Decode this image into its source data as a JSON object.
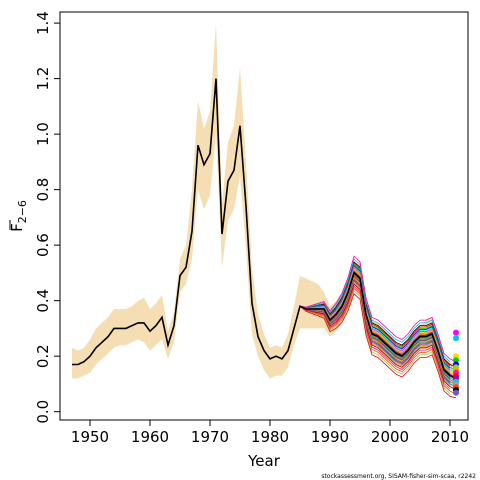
{
  "chart_data": {
    "type": "line",
    "title": "",
    "xlabel": "Year",
    "ylabel_main": "F",
    "ylabel_sub": "2−6",
    "xlim": [
      1945,
      2013
    ],
    "ylim": [
      -0.03,
      1.44
    ],
    "x_ticks": [
      1950,
      1960,
      1970,
      1980,
      1990,
      2000,
      2010
    ],
    "y_ticks": [
      0.0,
      0.2,
      0.4,
      0.6,
      0.8,
      1.0,
      1.2,
      1.4
    ],
    "y_tick_labels": [
      "0.0",
      "0.2",
      "0.4",
      "0.6",
      "0.8",
      "1.0",
      "1.2",
      "1.4"
    ],
    "credit": "stockassessment.org, SISAM-fisher-sim-scaa, r2242",
    "grid": false,
    "legend": "none",
    "band_color": "#f5deb3",
    "line_color": "#000000",
    "years": [
      1947,
      1948,
      1949,
      1950,
      1951,
      1952,
      1953,
      1954,
      1955,
      1956,
      1957,
      1958,
      1959,
      1960,
      1961,
      1962,
      1963,
      1964,
      1965,
      1966,
      1967,
      1968,
      1969,
      1970,
      1971,
      1972,
      1973,
      1974,
      1975,
      1976,
      1977,
      1978,
      1979,
      1980,
      1981,
      1982,
      1983,
      1984,
      1985,
      1986,
      1987,
      1988,
      1989,
      1990,
      1991,
      1992,
      1993,
      1994,
      1995,
      1996,
      1997,
      1998,
      1999,
      2000,
      2001,
      2002,
      2003,
      2004,
      2005,
      2006,
      2007,
      2008,
      2009,
      2010,
      2011
    ],
    "estimate": [
      0.17,
      0.17,
      0.18,
      0.2,
      0.23,
      0.25,
      0.27,
      0.3,
      0.3,
      0.3,
      0.31,
      0.32,
      0.32,
      0.29,
      0.31,
      0.34,
      0.24,
      0.31,
      0.49,
      0.52,
      0.65,
      0.96,
      0.89,
      0.93,
      1.2,
      0.64,
      0.83,
      0.87,
      1.03,
      0.74,
      0.39,
      0.27,
      0.22,
      0.19,
      0.2,
      0.19,
      0.22,
      0.3,
      0.38,
      0.37,
      0.37,
      0.37,
      0.37,
      0.33,
      0.35,
      0.38,
      0.43,
      0.5,
      0.48,
      0.35,
      0.28,
      0.27,
      0.25,
      0.23,
      0.21,
      0.2,
      0.22,
      0.25,
      0.27,
      0.27,
      0.28,
      0.22,
      0.15,
      0.13,
      0.12
    ],
    "upper": [
      0.23,
      0.22,
      0.23,
      0.26,
      0.3,
      0.32,
      0.34,
      0.37,
      0.37,
      0.37,
      0.38,
      0.4,
      0.41,
      0.37,
      0.39,
      0.42,
      0.29,
      0.36,
      0.55,
      0.6,
      0.8,
      1.12,
      1.02,
      1.08,
      1.4,
      0.75,
      0.97,
      1.03,
      1.24,
      0.9,
      0.52,
      0.35,
      0.28,
      0.23,
      0.24,
      0.23,
      0.28,
      0.38,
      0.49,
      0.48,
      0.47,
      0.46,
      0.43,
      0.38,
      0.4,
      0.43,
      0.48,
      0.54,
      0.53,
      0.39,
      0.33,
      0.32,
      0.3,
      0.28,
      0.25,
      0.24,
      0.26,
      0.29,
      0.31,
      0.33,
      0.34,
      0.28,
      0.2,
      0.18,
      0.17
    ],
    "lower": [
      0.12,
      0.12,
      0.13,
      0.14,
      0.17,
      0.19,
      0.21,
      0.23,
      0.24,
      0.24,
      0.25,
      0.26,
      0.25,
      0.22,
      0.24,
      0.26,
      0.19,
      0.25,
      0.43,
      0.46,
      0.55,
      0.8,
      0.73,
      0.78,
      1.0,
      0.52,
      0.69,
      0.73,
      0.85,
      0.58,
      0.28,
      0.2,
      0.15,
      0.12,
      0.13,
      0.13,
      0.16,
      0.24,
      0.3,
      0.3,
      0.3,
      0.3,
      0.3,
      0.27,
      0.29,
      0.32,
      0.37,
      0.44,
      0.42,
      0.3,
      0.23,
      0.22,
      0.2,
      0.18,
      0.16,
      0.15,
      0.17,
      0.2,
      0.22,
      0.22,
      0.22,
      0.17,
      0.11,
      0.09,
      0.08
    ],
    "retro_start_year": 1985,
    "retro_offsets": [
      0.04,
      0.035,
      0.03,
      0.026,
      0.022,
      0.018,
      0.015,
      0.012,
      0.009,
      0.006,
      0.004,
      0.002,
      0.0,
      -0.002,
      -0.004,
      -0.006,
      -0.009,
      -0.012,
      -0.015,
      -0.018,
      -0.022,
      -0.026,
      -0.03,
      -0.035,
      -0.04,
      -0.048,
      -0.056,
      -0.065,
      -0.075,
      0.05,
      0.06
    ],
    "retro_colors": [
      "#000000",
      "#ff0000",
      "#00cd00",
      "#0000ff",
      "#00ffff",
      "#ff00ff",
      "#ffd700",
      "#a0a0a0",
      "#ff8c00",
      "#8b4513",
      "#9400d3",
      "#228b22",
      "#dc143c",
      "#1e90ff",
      "#ff69b4",
      "#808000",
      "#00ced1",
      "#b22222",
      "#6a5acd",
      "#ffa500",
      "#2e8b57",
      "#c71585",
      "#4169e1",
      "#daa520",
      "#8b0000",
      "#ff1493",
      "#ff4500",
      "#9acd32",
      "#e60026",
      "#00bfff",
      "#ff00aa"
    ],
    "terminal_points": [
      {
        "year": 2011,
        "value": 0.285,
        "color": "#ff00ff"
      },
      {
        "year": 2011,
        "value": 0.265,
        "color": "#00bfff"
      },
      {
        "year": 2011,
        "value": 0.2,
        "color": "#ffd700"
      },
      {
        "year": 2011,
        "value": 0.185,
        "color": "#00cd00"
      },
      {
        "year": 2011,
        "value": 0.17,
        "color": "#0000ff"
      },
      {
        "year": 2011,
        "value": 0.16,
        "color": "#9acd32"
      },
      {
        "year": 2011,
        "value": 0.15,
        "color": "#ffa500"
      },
      {
        "year": 2011,
        "value": 0.14,
        "color": "#ff1493"
      },
      {
        "year": 2011,
        "value": 0.128,
        "color": "#ff0000"
      },
      {
        "year": 2011,
        "value": 0.118,
        "color": "#9400d3"
      },
      {
        "year": 2011,
        "value": 0.108,
        "color": "#00ced1"
      },
      {
        "year": 2011,
        "value": 0.098,
        "color": "#a0a0a0"
      },
      {
        "year": 2011,
        "value": 0.088,
        "color": "#ff4500"
      },
      {
        "year": 2011,
        "value": 0.078,
        "color": "#000000"
      },
      {
        "year": 2011,
        "value": 0.068,
        "color": "#6a5acd"
      }
    ]
  }
}
